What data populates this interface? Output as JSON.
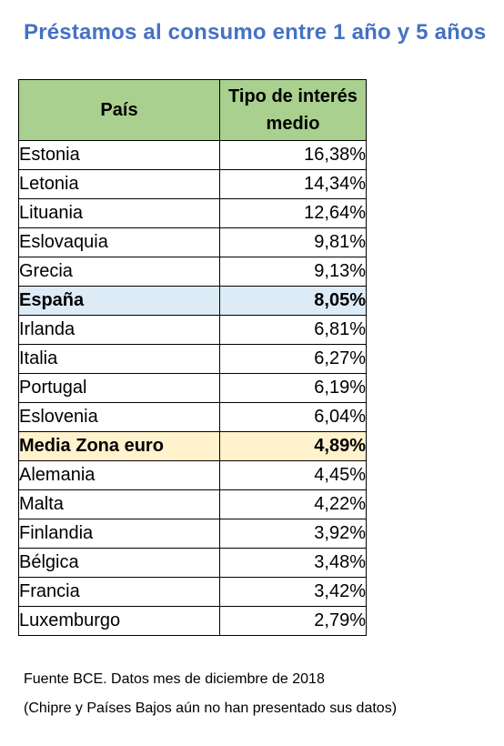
{
  "chart_data": {
    "type": "table",
    "title": "Préstamos al consumo entre 1 año y 5 años",
    "columns": [
      "País",
      "Tipo de interés medio"
    ],
    "rows": [
      {
        "country": "Estonia",
        "rate": "16,38%",
        "highlight": ""
      },
      {
        "country": "Letonia",
        "rate": "14,34%",
        "highlight": ""
      },
      {
        "country": "Lituania",
        "rate": "12,64%",
        "highlight": ""
      },
      {
        "country": "Eslovaquia",
        "rate": "9,81%",
        "highlight": ""
      },
      {
        "country": "Grecia",
        "rate": "9,13%",
        "highlight": ""
      },
      {
        "country": "España",
        "rate": "8,05%",
        "highlight": "spain"
      },
      {
        "country": "Irlanda",
        "rate": "6,81%",
        "highlight": ""
      },
      {
        "country": "Italia",
        "rate": "6,27%",
        "highlight": ""
      },
      {
        "country": "Portugal",
        "rate": "6,19%",
        "highlight": ""
      },
      {
        "country": "Eslovenia",
        "rate": "6,04%",
        "highlight": ""
      },
      {
        "country": "Media Zona euro",
        "rate": "4,89%",
        "highlight": "euro"
      },
      {
        "country": "Alemania",
        "rate": "4,45%",
        "highlight": ""
      },
      {
        "country": "Malta",
        "rate": "4,22%",
        "highlight": ""
      },
      {
        "country": "Finlandia",
        "rate": "3,92%",
        "highlight": ""
      },
      {
        "country": "Bélgica",
        "rate": "3,48%",
        "highlight": ""
      },
      {
        "country": "Francia",
        "rate": "3,42%",
        "highlight": ""
      },
      {
        "country": "Luxemburgo",
        "rate": "2,79%",
        "highlight": ""
      }
    ],
    "notes": [
      "Fuente BCE. Datos mes de diciembre de 2018",
      "(Chipre y Países Bajos aún no han presentado sus datos)"
    ]
  },
  "colors": {
    "title": "#4472c4",
    "header_fill": "#a9d08e",
    "spain_fill": "#ddebf7",
    "euro_fill": "#fff2cc"
  }
}
